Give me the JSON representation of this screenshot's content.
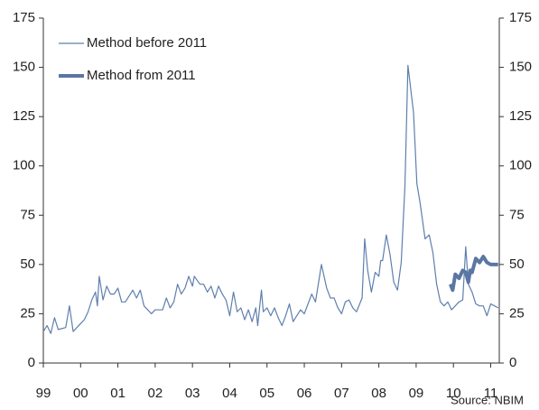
{
  "chart_data": {
    "type": "line",
    "source": "Source: NBIM",
    "xlim": [
      1999,
      2011.23
    ],
    "xticks": [
      {
        "value": 1999,
        "label": "99"
      },
      {
        "value": 2000,
        "label": "00"
      },
      {
        "value": 2001,
        "label": "01"
      },
      {
        "value": 2002,
        "label": "02"
      },
      {
        "value": 2003,
        "label": "03"
      },
      {
        "value": 2004,
        "label": "04"
      },
      {
        "value": 2005,
        "label": "05"
      },
      {
        "value": 2006,
        "label": "06"
      },
      {
        "value": 2007,
        "label": "07"
      },
      {
        "value": 2008,
        "label": "08"
      },
      {
        "value": 2009,
        "label": "09"
      },
      {
        "value": 2010,
        "label": "10"
      },
      {
        "value": 2011,
        "label": "11"
      }
    ],
    "ylim": [
      0,
      175
    ],
    "yticks": [
      0,
      25,
      50,
      75,
      100,
      125,
      150,
      175
    ],
    "y2lim": [
      0,
      175
    ],
    "y2ticks": [
      0,
      25,
      50,
      75,
      100,
      125,
      150,
      175
    ],
    "legend": "upper left",
    "series": [
      {
        "name": "Method before 2011",
        "color": "#5f7fae",
        "width": 1.2,
        "x": [
          1999.0,
          1999.1,
          1999.2,
          1999.3,
          1999.4,
          1999.6,
          1999.7,
          1999.8,
          2000.0,
          2000.1,
          2000.2,
          2000.3,
          2000.4,
          2000.45,
          2000.5,
          2000.6,
          2000.7,
          2000.8,
          2000.9,
          2001.0,
          2001.1,
          2001.2,
          2001.3,
          2001.4,
          2001.5,
          2001.6,
          2001.7,
          2001.9,
          2002.0,
          2002.2,
          2002.3,
          2002.4,
          2002.5,
          2002.6,
          2002.7,
          2002.8,
          2002.9,
          2003.0,
          2003.05,
          2003.2,
          2003.3,
          2003.4,
          2003.5,
          2003.6,
          2003.7,
          2003.8,
          2003.9,
          2004.0,
          2004.1,
          2004.2,
          2004.3,
          2004.4,
          2004.5,
          2004.6,
          2004.7,
          2004.75,
          2004.85,
          2004.9,
          2005.0,
          2005.1,
          2005.2,
          2005.3,
          2005.4,
          2005.5,
          2005.6,
          2005.7,
          2005.8,
          2005.9,
          2006.0,
          2006.1,
          2006.2,
          2006.3,
          2006.35,
          2006.46,
          2006.6,
          2006.7,
          2006.8,
          2006.9,
          2007.0,
          2007.1,
          2007.2,
          2007.3,
          2007.4,
          2007.55,
          2007.62,
          2007.7,
          2007.8,
          2007.9,
          2008.0,
          2008.05,
          2008.1,
          2008.2,
          2008.3,
          2008.4,
          2008.5,
          2008.6,
          2008.7,
          2008.78,
          2008.93,
          2009.02,
          2009.1,
          2009.24,
          2009.35,
          2009.45,
          2009.55,
          2009.65,
          2009.75,
          2009.85,
          2009.95,
          2010.05,
          2010.15,
          2010.25,
          2010.33,
          2010.4,
          2010.5,
          2010.6,
          2010.7,
          2010.8,
          2010.9,
          2011.0,
          2011.1,
          2011.2
        ],
        "values": [
          16,
          19,
          15,
          23,
          17,
          18,
          29,
          16,
          20,
          22,
          26,
          32,
          36,
          29,
          44,
          32,
          39,
          35,
          35,
          38,
          31,
          31,
          34,
          37,
          33,
          37,
          29,
          25,
          27,
          27,
          33,
          28,
          31,
          40,
          35,
          38,
          44,
          39,
          44,
          40,
          40,
          36,
          39,
          33,
          39,
          35,
          32,
          24,
          36,
          26,
          28,
          22,
          27,
          21,
          28,
          19,
          37,
          26,
          28,
          24,
          28,
          23,
          19,
          24,
          30,
          21,
          24,
          27,
          25,
          30,
          35,
          31,
          37,
          50,
          38,
          33,
          33,
          28,
          25,
          31,
          32,
          28,
          26,
          33,
          63,
          47,
          36,
          46,
          44,
          52,
          52,
          65,
          55,
          41,
          37,
          51,
          90,
          151,
          127,
          91,
          82,
          63,
          65,
          56,
          40,
          31,
          29,
          31,
          27,
          29,
          31,
          32,
          59,
          40,
          36,
          30,
          29,
          29,
          24,
          30,
          29,
          28
        ]
      },
      {
        "name": "Method from 2011",
        "color": "#5a76a4",
        "width": 4,
        "x": [
          2009.92,
          2009.98,
          2010.05,
          2010.15,
          2010.25,
          2010.33,
          2010.4,
          2010.45,
          2010.5,
          2010.6,
          2010.7,
          2010.8,
          2010.9,
          2011.0,
          2011.2
        ],
        "values": [
          40,
          37,
          45,
          43,
          47,
          46,
          41,
          47,
          46,
          53,
          51,
          54,
          51,
          50,
          50
        ]
      }
    ]
  }
}
